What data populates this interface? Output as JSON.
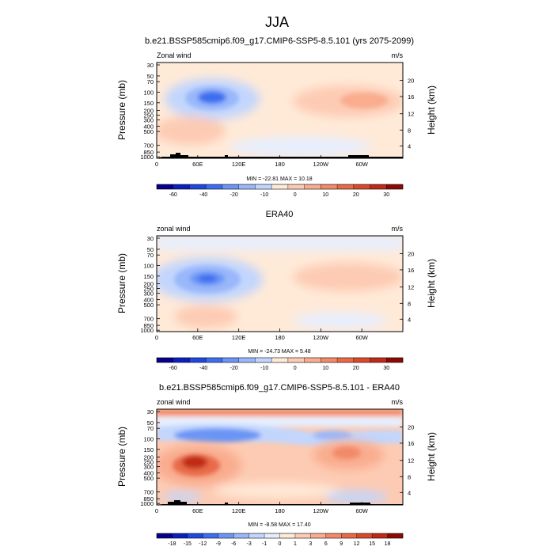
{
  "figure_title": "JJA",
  "chart_data": [
    {
      "type": "heatmap",
      "title": "b.e21.BSSP585cmip6.f09_g17.CMIP6-SSP5-8.5.101 (yrs 2075-2099)",
      "variable_label": "Zonal wind",
      "units": "m/s",
      "ylabel": "Pressure (mb)",
      "ylabel_right": "Height (km)",
      "x_ticks": [
        "0",
        "60E",
        "120E",
        "180",
        "120W",
        "60W"
      ],
      "y_ticks": [
        "30",
        "50",
        "70",
        "100",
        "150",
        "200",
        "250",
        "300",
        "400",
        "500",
        "700",
        "850",
        "1000"
      ],
      "y_ticks_right": [
        "20",
        "16",
        "12",
        "8",
        "4"
      ],
      "min_max_text": "MIN = -22.81  MAX = 10.18",
      "min": -22.81,
      "max": 10.18,
      "colorbar_labels": [
        "-60",
        "-40",
        "-20",
        "-10",
        "0",
        "10",
        "20",
        "30"
      ],
      "colorbar_colors": [
        "#05008c",
        "#0a1fbf",
        "#1f48e0",
        "#3d6ef0",
        "#6b95f5",
        "#99b7fa",
        "#c2d6fd",
        "#ffead8",
        "#fdcbb3",
        "#f9ac8e",
        "#f18a69",
        "#e86a48",
        "#d94a2c",
        "#c02a17",
        "#8c0a05"
      ]
    },
    {
      "type": "heatmap",
      "title": "ERA40",
      "variable_label": "zonal wind",
      "units": "m/s",
      "ylabel": "Pressure (mb)",
      "ylabel_right": "Height (km)",
      "x_ticks": [
        "0",
        "60E",
        "120E",
        "180",
        "120W",
        "60W"
      ],
      "y_ticks": [
        "30",
        "50",
        "70",
        "100",
        "150",
        "200",
        "250",
        "300",
        "400",
        "500",
        "700",
        "850",
        "1000"
      ],
      "y_ticks_right": [
        "20",
        "16",
        "12",
        "8",
        "4"
      ],
      "min_max_text": "MIN = -24.73  MAX =   5.48",
      "min": -24.73,
      "max": 5.48,
      "colorbar_labels": [
        "-60",
        "-40",
        "-20",
        "-10",
        "0",
        "10",
        "20",
        "30"
      ],
      "colorbar_colors": [
        "#05008c",
        "#0a1fbf",
        "#1f48e0",
        "#3d6ef0",
        "#6b95f5",
        "#99b7fa",
        "#c2d6fd",
        "#ffead8",
        "#fdcbb3",
        "#f9ac8e",
        "#f18a69",
        "#e86a48",
        "#d94a2c",
        "#c02a17",
        "#8c0a05"
      ]
    },
    {
      "type": "heatmap",
      "title": "b.e21.BSSP585cmip6.f09_g17.CMIP6-SSP5-8.5.101 - ERA40",
      "variable_label": "zonal wind",
      "units": "m/s",
      "ylabel": "Pressure (mb)",
      "ylabel_right": "Height (km)",
      "x_ticks": [
        "0",
        "60E",
        "120E",
        "180",
        "120W",
        "60W"
      ],
      "y_ticks": [
        "30",
        "50",
        "70",
        "100",
        "150",
        "200",
        "250",
        "300",
        "400",
        "500",
        "700",
        "850",
        "1000"
      ],
      "y_ticks_right": [
        "20",
        "16",
        "12",
        "8",
        "4"
      ],
      "min_max_text": "MIN =  -8.58  MAX = 17.40",
      "min": -8.58,
      "max": 17.4,
      "colorbar_labels": [
        "-18",
        "-15",
        "-12",
        "-9",
        "-6",
        "-3",
        "-1",
        "0",
        "1",
        "3",
        "6",
        "9",
        "12",
        "15",
        "18"
      ],
      "colorbar_colors": [
        "#05008c",
        "#0a1fbf",
        "#1f48e0",
        "#3d6ef0",
        "#6b95f5",
        "#99b7fa",
        "#c2d6fd",
        "#e6eefe",
        "#ffead8",
        "#fdcbb3",
        "#f9ac8e",
        "#f18a69",
        "#e86a48",
        "#d94a2c",
        "#c02a17",
        "#8c0a05"
      ]
    }
  ]
}
